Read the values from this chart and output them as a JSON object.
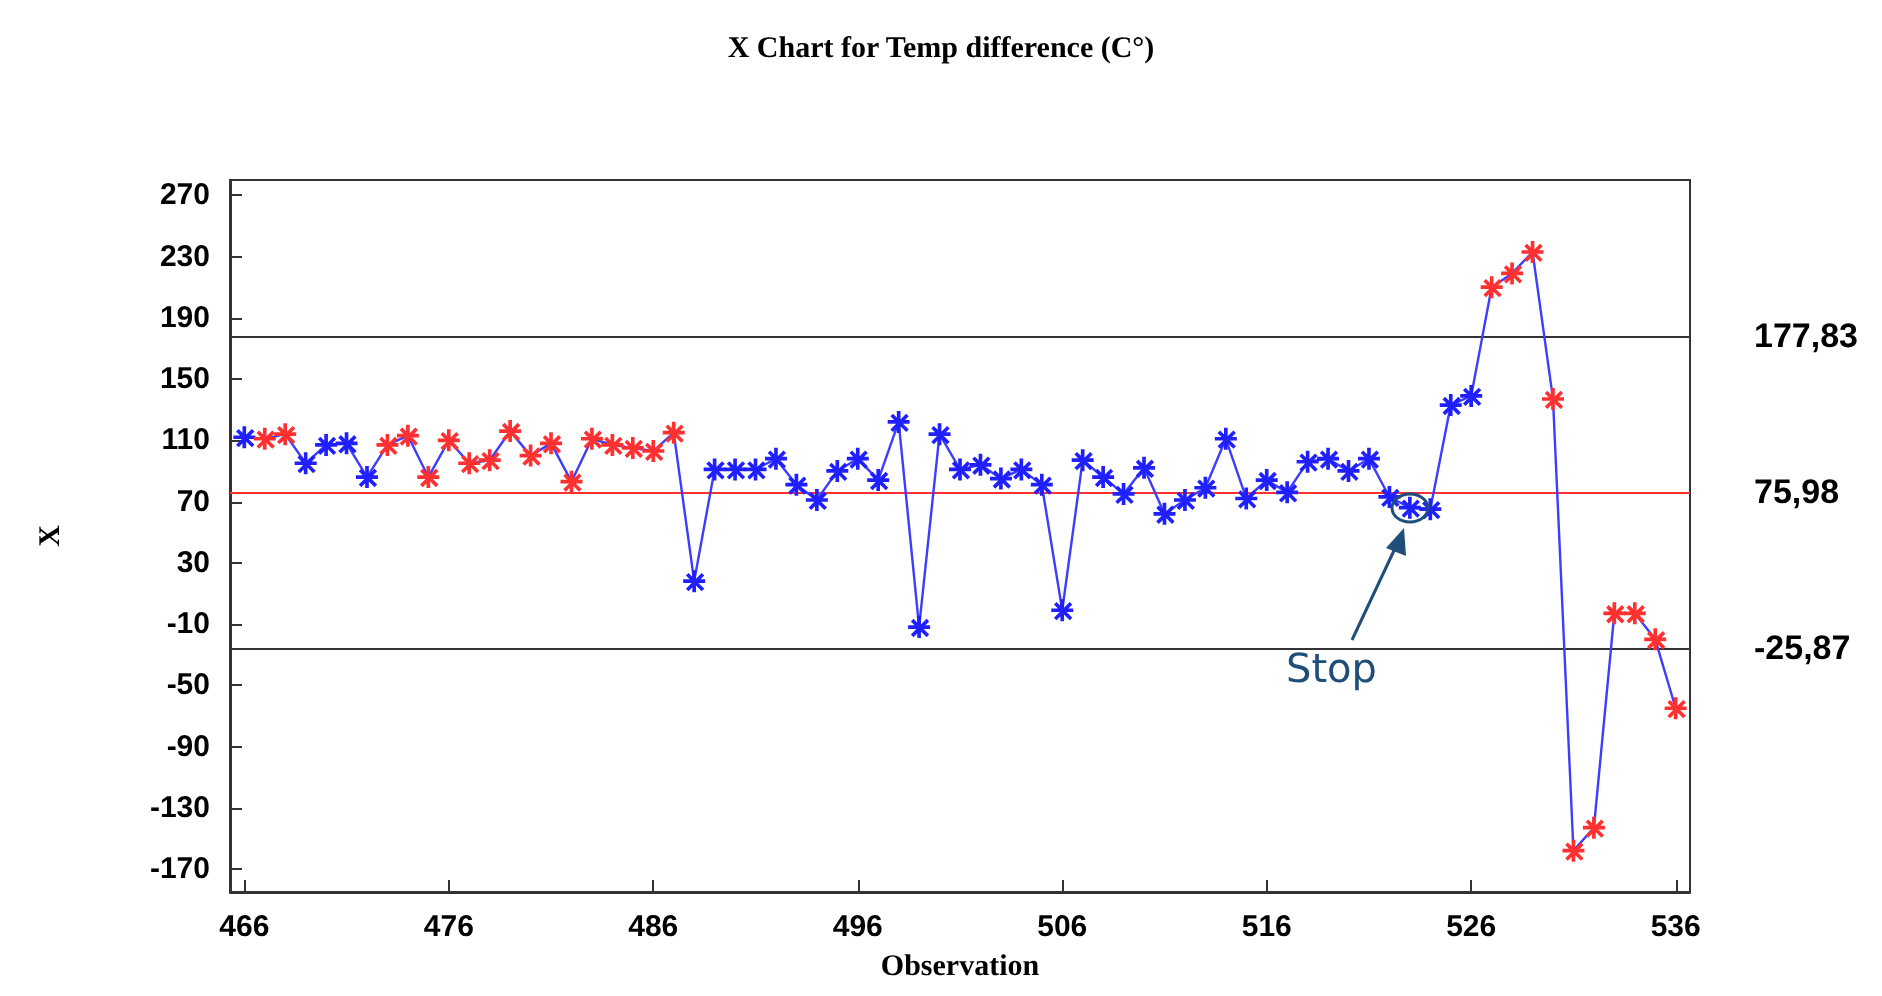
{
  "chart_data": {
    "type": "line",
    "title": "X Chart for Temp difference (C°)",
    "xlabel": "Observation",
    "ylabel": "X",
    "x": [
      466,
      467,
      468,
      469,
      470,
      471,
      472,
      473,
      474,
      475,
      476,
      477,
      478,
      479,
      480,
      481,
      482,
      483,
      484,
      485,
      486,
      487,
      488,
      489,
      490,
      491,
      492,
      493,
      494,
      495,
      496,
      497,
      498,
      499,
      500,
      501,
      502,
      503,
      504,
      505,
      506,
      507,
      508,
      509,
      510,
      511,
      512,
      513,
      514,
      515,
      516,
      517,
      518,
      519,
      520,
      521,
      522,
      523,
      524,
      525,
      526,
      527,
      528,
      529,
      530,
      531,
      532,
      533,
      534,
      535,
      536
    ],
    "series": [
      {
        "color": "#3d3dff",
        "values": [
          112,
          111,
          114,
          95,
          107,
          108,
          86,
          107,
          113,
          86,
          110,
          95,
          97,
          116,
          100,
          108,
          83,
          111,
          107,
          105,
          103,
          115,
          18,
          91,
          91,
          91,
          98,
          81,
          71,
          90,
          98,
          84,
          122,
          -12,
          114,
          91,
          94,
          85,
          91,
          81,
          -1,
          97,
          86,
          75,
          92,
          62,
          71,
          79,
          111,
          72,
          84,
          76,
          96,
          98,
          90,
          98,
          73,
          66,
          65,
          133,
          139,
          210,
          219,
          233,
          137,
          -158,
          -143,
          -3,
          -3,
          -20,
          -65
        ],
        "colors": [
          "#2020ff",
          "#ff3030",
          "#ff3030",
          "#2020ff",
          "#2020ff",
          "#2020ff",
          "#2020ff",
          "#ff3030",
          "#ff3030",
          "#ff3030",
          "#ff3030",
          "#ff3030",
          "#ff3030",
          "#ff3030",
          "#ff3030",
          "#ff3030",
          "#ff3030",
          "#ff3030",
          "#ff3030",
          "#ff3030",
          "#ff3030",
          "#ff3030",
          "#2020ff",
          "#2020ff",
          "#2020ff",
          "#2020ff",
          "#2020ff",
          "#2020ff",
          "#2020ff",
          "#2020ff",
          "#2020ff",
          "#2020ff",
          "#2020ff",
          "#2020ff",
          "#2020ff",
          "#2020ff",
          "#2020ff",
          "#2020ff",
          "#2020ff",
          "#2020ff",
          "#2020ff",
          "#2020ff",
          "#2020ff",
          "#2020ff",
          "#2020ff",
          "#2020ff",
          "#2020ff",
          "#2020ff",
          "#2020ff",
          "#2020ff",
          "#2020ff",
          "#2020ff",
          "#2020ff",
          "#2020ff",
          "#2020ff",
          "#2020ff",
          "#2020ff",
          "#2020ff",
          "#2020ff",
          "#2020ff",
          "#2020ff",
          "#ff3030",
          "#ff3030",
          "#ff3030",
          "#ff3030",
          "#ff3030",
          "#ff3030",
          "#ff3030",
          "#ff3030",
          "#ff3030",
          "#ff3030"
        ]
      }
    ],
    "xlim": [
      465.3,
      536.7
    ],
    "xticks": [
      466,
      476,
      486,
      496,
      506,
      516,
      526,
      536
    ],
    "ylim": [
      -185,
      280
    ],
    "yticks": [
      -170,
      -130,
      -90,
      -50,
      -10,
      30,
      70,
      110,
      150,
      190,
      230,
      270
    ],
    "ref_lines": [
      {
        "axis": "y",
        "value": 177.83,
        "label": "177,83",
        "color": "#333333"
      },
      {
        "axis": "y",
        "value": 75.98,
        "label": "75,98",
        "color": "#ff3030"
      },
      {
        "axis": "y",
        "value": -25.87,
        "label": "-25,87",
        "color": "#333333"
      }
    ],
    "annotations": [
      "Stop"
    ],
    "marker": "star",
    "line_style": "solid",
    "grid": false
  }
}
